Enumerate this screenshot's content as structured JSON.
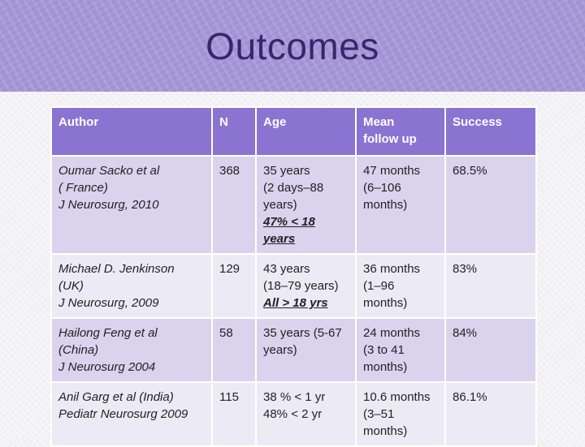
{
  "slide": {
    "title": "Outcomes"
  },
  "table": {
    "headers": [
      "Author",
      "N",
      "Age",
      "Mean follow up",
      "Success"
    ],
    "header_lines": {
      "mean_follow_up": [
        "Mean",
        "follow up"
      ]
    },
    "rows": [
      {
        "author": [
          "Oumar Sacko et al",
          " ( France)",
          "J Neurosurg, 2010"
        ],
        "n": "368",
        "age": [
          "35 years",
          "(2 days–88",
          "years)"
        ],
        "age_note": "47% < 18 years",
        "followup": [
          "47 months",
          "(6–106",
          "months)"
        ],
        "success": "68.5%"
      },
      {
        "author": [
          "Michael D. Jenkinson",
          "(UK)",
          "J Neurosurg, 2009"
        ],
        "n": "129",
        "age": [
          "43 years",
          "(18–79 years)"
        ],
        "age_note": "All > 18 yrs",
        "followup": [
          "36 months",
          " (1–96",
          "months)"
        ],
        "success": "83%"
      },
      {
        "author": [
          "Hailong Feng et al",
          "(China)",
          "J Neurosurg 2004"
        ],
        "n": "58",
        "age": [
          "35 years (5-67",
          "years)"
        ],
        "age_note": "",
        "followup": [
          "24 months",
          "(3 to 41",
          "months)"
        ],
        "success": "84%"
      },
      {
        "author": [
          "Anil Garg et al (India)",
          "Pediatr Neurosurg 2009"
        ],
        "n": "115",
        "age": [
          "38 % < 1 yr",
          "48% < 2 yr"
        ],
        "age_note": "",
        "followup": [
          "10.6 months",
          "(3–51",
          "months)"
        ],
        "success": "86.1%"
      }
    ]
  },
  "colors": {
    "header_bg": "#8b73d2",
    "row_odd": "#d9d3ee",
    "row_even": "#ecebf5",
    "title": "#3a2470",
    "banner": "#a597d6"
  }
}
